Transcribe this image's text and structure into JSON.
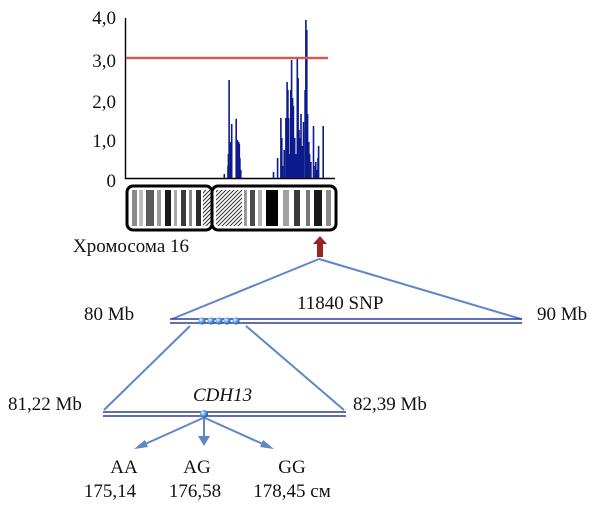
{
  "chart_data": {
    "type": "bar",
    "title": "",
    "xlabel": "",
    "ylabel": "",
    "ylim": [
      0,
      4
    ],
    "yticks": [
      "0",
      "1,0",
      "2,0",
      "3,0",
      "4,0"
    ],
    "threshold": {
      "value": 3.0,
      "color": "#d05a5a"
    },
    "bar_color": "#0c1a8c",
    "x_range": [
      0,
      100
    ],
    "series": [
      {
        "x": [
          47,
          48.8,
          49,
          49.3,
          50,
          50.3,
          50.6,
          52.8,
          53.1,
          53.4,
          54,
          54.3,
          54.6,
          55,
          71,
          73,
          74.6,
          75,
          75.4,
          76.2,
          77,
          77.6,
          78,
          78.4,
          78.8,
          79.4,
          79.8,
          80.3,
          80.7,
          81.3,
          82,
          82.6,
          83,
          83.4,
          84,
          84.4,
          85,
          85.6,
          86.4,
          86.8,
          87.2,
          87.6,
          88.2,
          88.6,
          89.2,
          90.5,
          91.2,
          91.6,
          92.2,
          92.7,
          93,
          95.2
        ],
        "values": [
          0.1,
          0.3,
          0.6,
          2.45,
          0.9,
          0.5,
          1.35,
          1.48,
          0.7,
          0.95,
          0.9,
          0.85,
          0.5,
          0.2,
          0.15,
          0.5,
          1.5,
          1.0,
          0.3,
          0.7,
          1.5,
          2.4,
          2.2,
          1.5,
          0.6,
          2.2,
          2.95,
          2.0,
          1.8,
          1.0,
          0.6,
          3.0,
          2.5,
          1.2,
          1.0,
          1.6,
          0.8,
          1.4,
          2.2,
          3.95,
          3.7,
          1.6,
          0.9,
          0.6,
          0.4,
          1.3,
          0.3,
          0.4,
          0.2,
          0.5,
          0.8,
          1.3
        ]
      }
    ]
  },
  "chromosome": {
    "label": "Хромосома 16"
  },
  "region": {
    "left_label": "80 Mb",
    "right_label": "90 Mb",
    "center_label": "11840 SNP",
    "line_color": "#2b3f9e",
    "guide_color": "#5f86c6",
    "arrow_color": "#9b2222"
  },
  "gene": {
    "name": "CDH13",
    "left_label": "81,22 Mb",
    "right_label": "82,39 Mb"
  },
  "genotypes": [
    {
      "name": "AA",
      "value": "175,14"
    },
    {
      "name": "AG",
      "value": "176,58"
    },
    {
      "name": "GG",
      "value": "178,45 см"
    }
  ]
}
